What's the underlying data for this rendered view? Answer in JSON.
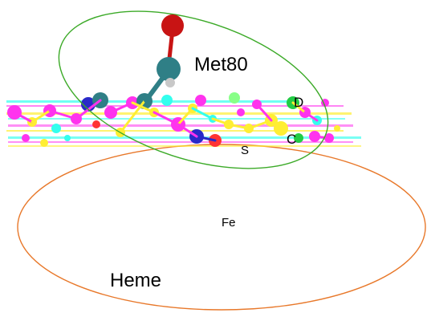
{
  "labels": {
    "met80": "Met80",
    "heme": "Heme",
    "fe": "Fe",
    "s": "S",
    "c": "C",
    "d": "D"
  },
  "colors": {
    "met_ellipse": "#3caa28",
    "heme_ellipse": "#e8782a",
    "oxygen": "#c81414",
    "carbon": "#2f7f86",
    "hydrogen": "#c8c8c8",
    "magenta": "#ff33ee",
    "yellow": "#ffee33",
    "cyan": "#33ffee",
    "blue": "#2a2ac8",
    "red_band": "#ff3333",
    "green_band": "#22cc44"
  }
}
